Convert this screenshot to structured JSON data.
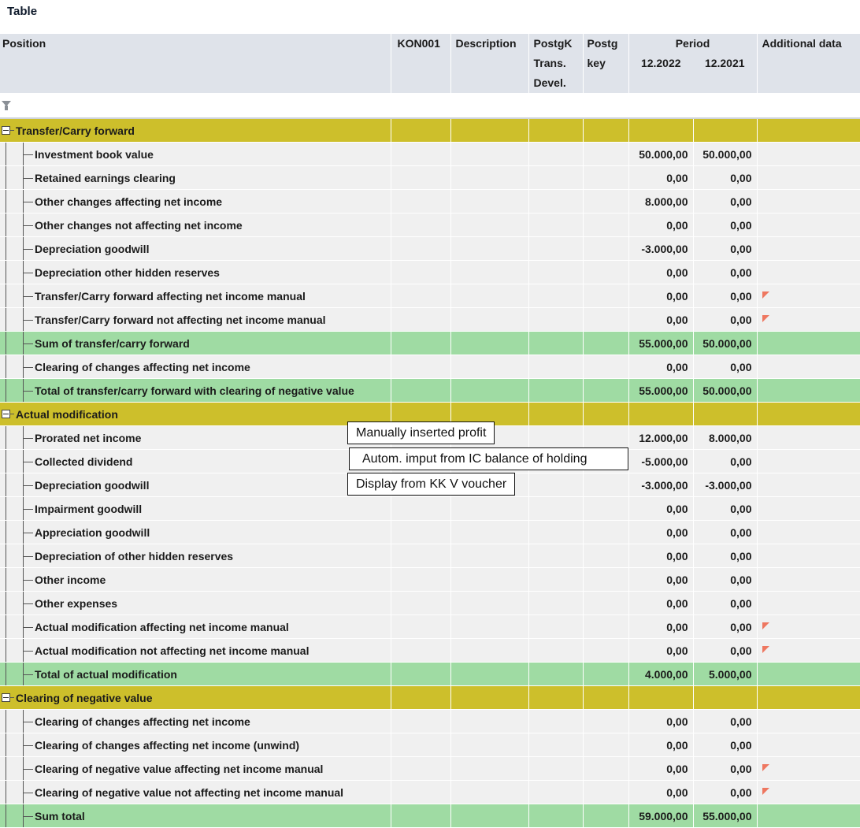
{
  "page": {
    "title": "Table"
  },
  "columns": {
    "position": "Position",
    "kon001": "KON001",
    "description": "Description",
    "postgk": [
      "PostgK",
      "Trans.",
      "Devel."
    ],
    "postg": [
      "Postg",
      "key"
    ],
    "period": "Period",
    "period_cols": [
      "12.2022",
      "12.2021"
    ],
    "additional": "Additional data"
  },
  "colors": {
    "group": "#cdbf2b",
    "data": "#f0f0f0",
    "sum": "#9fdba3",
    "header": "#dfe3ea",
    "flag": "#ee7760"
  },
  "rows": [
    {
      "type": "group",
      "label": "Transfer/Carry forward",
      "v1": "",
      "v2": "",
      "flag": false
    },
    {
      "type": "data",
      "label": "Investment book value",
      "v1": "50.000,00",
      "v2": "50.000,00",
      "flag": false
    },
    {
      "type": "data",
      "label": "Retained earnings clearing",
      "v1": "0,00",
      "v2": "0,00",
      "flag": false
    },
    {
      "type": "data",
      "label": "Other changes affecting net income",
      "v1": "8.000,00",
      "v2": "0,00",
      "flag": false
    },
    {
      "type": "data",
      "label": "Other changes not affecting net income",
      "v1": "0,00",
      "v2": "0,00",
      "flag": false
    },
    {
      "type": "data",
      "label": "Depreciation goodwill",
      "v1": "-3.000,00",
      "v2": "0,00",
      "flag": false
    },
    {
      "type": "data",
      "label": "Depreciation other hidden reserves",
      "v1": "0,00",
      "v2": "0,00",
      "flag": false
    },
    {
      "type": "data",
      "label": "Transfer/Carry forward affecting net income manual",
      "v1": "0,00",
      "v2": "0,00",
      "flag": true
    },
    {
      "type": "data",
      "label": "Transfer/Carry forward not affecting net income manual",
      "v1": "0,00",
      "v2": "0,00",
      "flag": true
    },
    {
      "type": "sum",
      "label": "Sum of transfer/carry forward",
      "v1": "55.000,00",
      "v2": "50.000,00",
      "flag": false
    },
    {
      "type": "data",
      "label": "Clearing of changes affecting net income",
      "v1": "0,00",
      "v2": "0,00",
      "flag": false
    },
    {
      "type": "sum",
      "label": "Total of transfer/carry forward with clearing of negative value",
      "v1": "55.000,00",
      "v2": "50.000,00",
      "flag": false
    },
    {
      "type": "group",
      "label": "Actual modification",
      "v1": "",
      "v2": "",
      "flag": false
    },
    {
      "type": "data",
      "label": "Prorated net income",
      "v1": "12.000,00",
      "v2": "8.000,00",
      "flag": false
    },
    {
      "type": "data",
      "label": "Collected dividend",
      "v1": "-5.000,00",
      "v2": "0,00",
      "flag": false
    },
    {
      "type": "data",
      "label": "Depreciation goodwill",
      "v1": "-3.000,00",
      "v2": "-3.000,00",
      "flag": false
    },
    {
      "type": "data",
      "label": "Impairment goodwill",
      "v1": "0,00",
      "v2": "0,00",
      "flag": false
    },
    {
      "type": "data",
      "label": "Appreciation goodwill",
      "v1": "0,00",
      "v2": "0,00",
      "flag": false
    },
    {
      "type": "data",
      "label": "Depreciation  of other hidden reserves",
      "v1": "0,00",
      "v2": "0,00",
      "flag": false
    },
    {
      "type": "data",
      "label": "Other income",
      "v1": "0,00",
      "v2": "0,00",
      "flag": false
    },
    {
      "type": "data",
      "label": "Other expenses",
      "v1": "0,00",
      "v2": "0,00",
      "flag": false
    },
    {
      "type": "data",
      "label": "Actual modification affecting net income manual",
      "v1": "0,00",
      "v2": "0,00",
      "flag": true
    },
    {
      "type": "data",
      "label": "Actual modification not affecting net income manual",
      "v1": "0,00",
      "v2": "0,00",
      "flag": true
    },
    {
      "type": "sum",
      "label": "Total of actual modification",
      "v1": "4.000,00",
      "v2": "5.000,00",
      "flag": false
    },
    {
      "type": "group",
      "label": "Clearing of negative value",
      "v1": "",
      "v2": "",
      "flag": false
    },
    {
      "type": "data",
      "label": "Clearing of changes affecting net income",
      "v1": "0,00",
      "v2": "0,00",
      "flag": false
    },
    {
      "type": "data",
      "label": "Clearing of changes affecting net income (unwind)",
      "v1": "0,00",
      "v2": "0,00",
      "flag": false
    },
    {
      "type": "data",
      "label": "Clearing of negative value affecting net income manual",
      "v1": "0,00",
      "v2": "0,00",
      "flag": true
    },
    {
      "type": "data",
      "label": "Clearing of negative value not affecting net income manual",
      "v1": "0,00",
      "v2": "0,00",
      "flag": true
    },
    {
      "type": "sum",
      "label": "Sum total",
      "v1": "59.000,00",
      "v2": "55.000,00",
      "flag": false
    }
  ],
  "callouts": [
    "Manually inserted profit",
    "Autom. imput from IC balance of holding",
    "Display from KK V voucher"
  ]
}
